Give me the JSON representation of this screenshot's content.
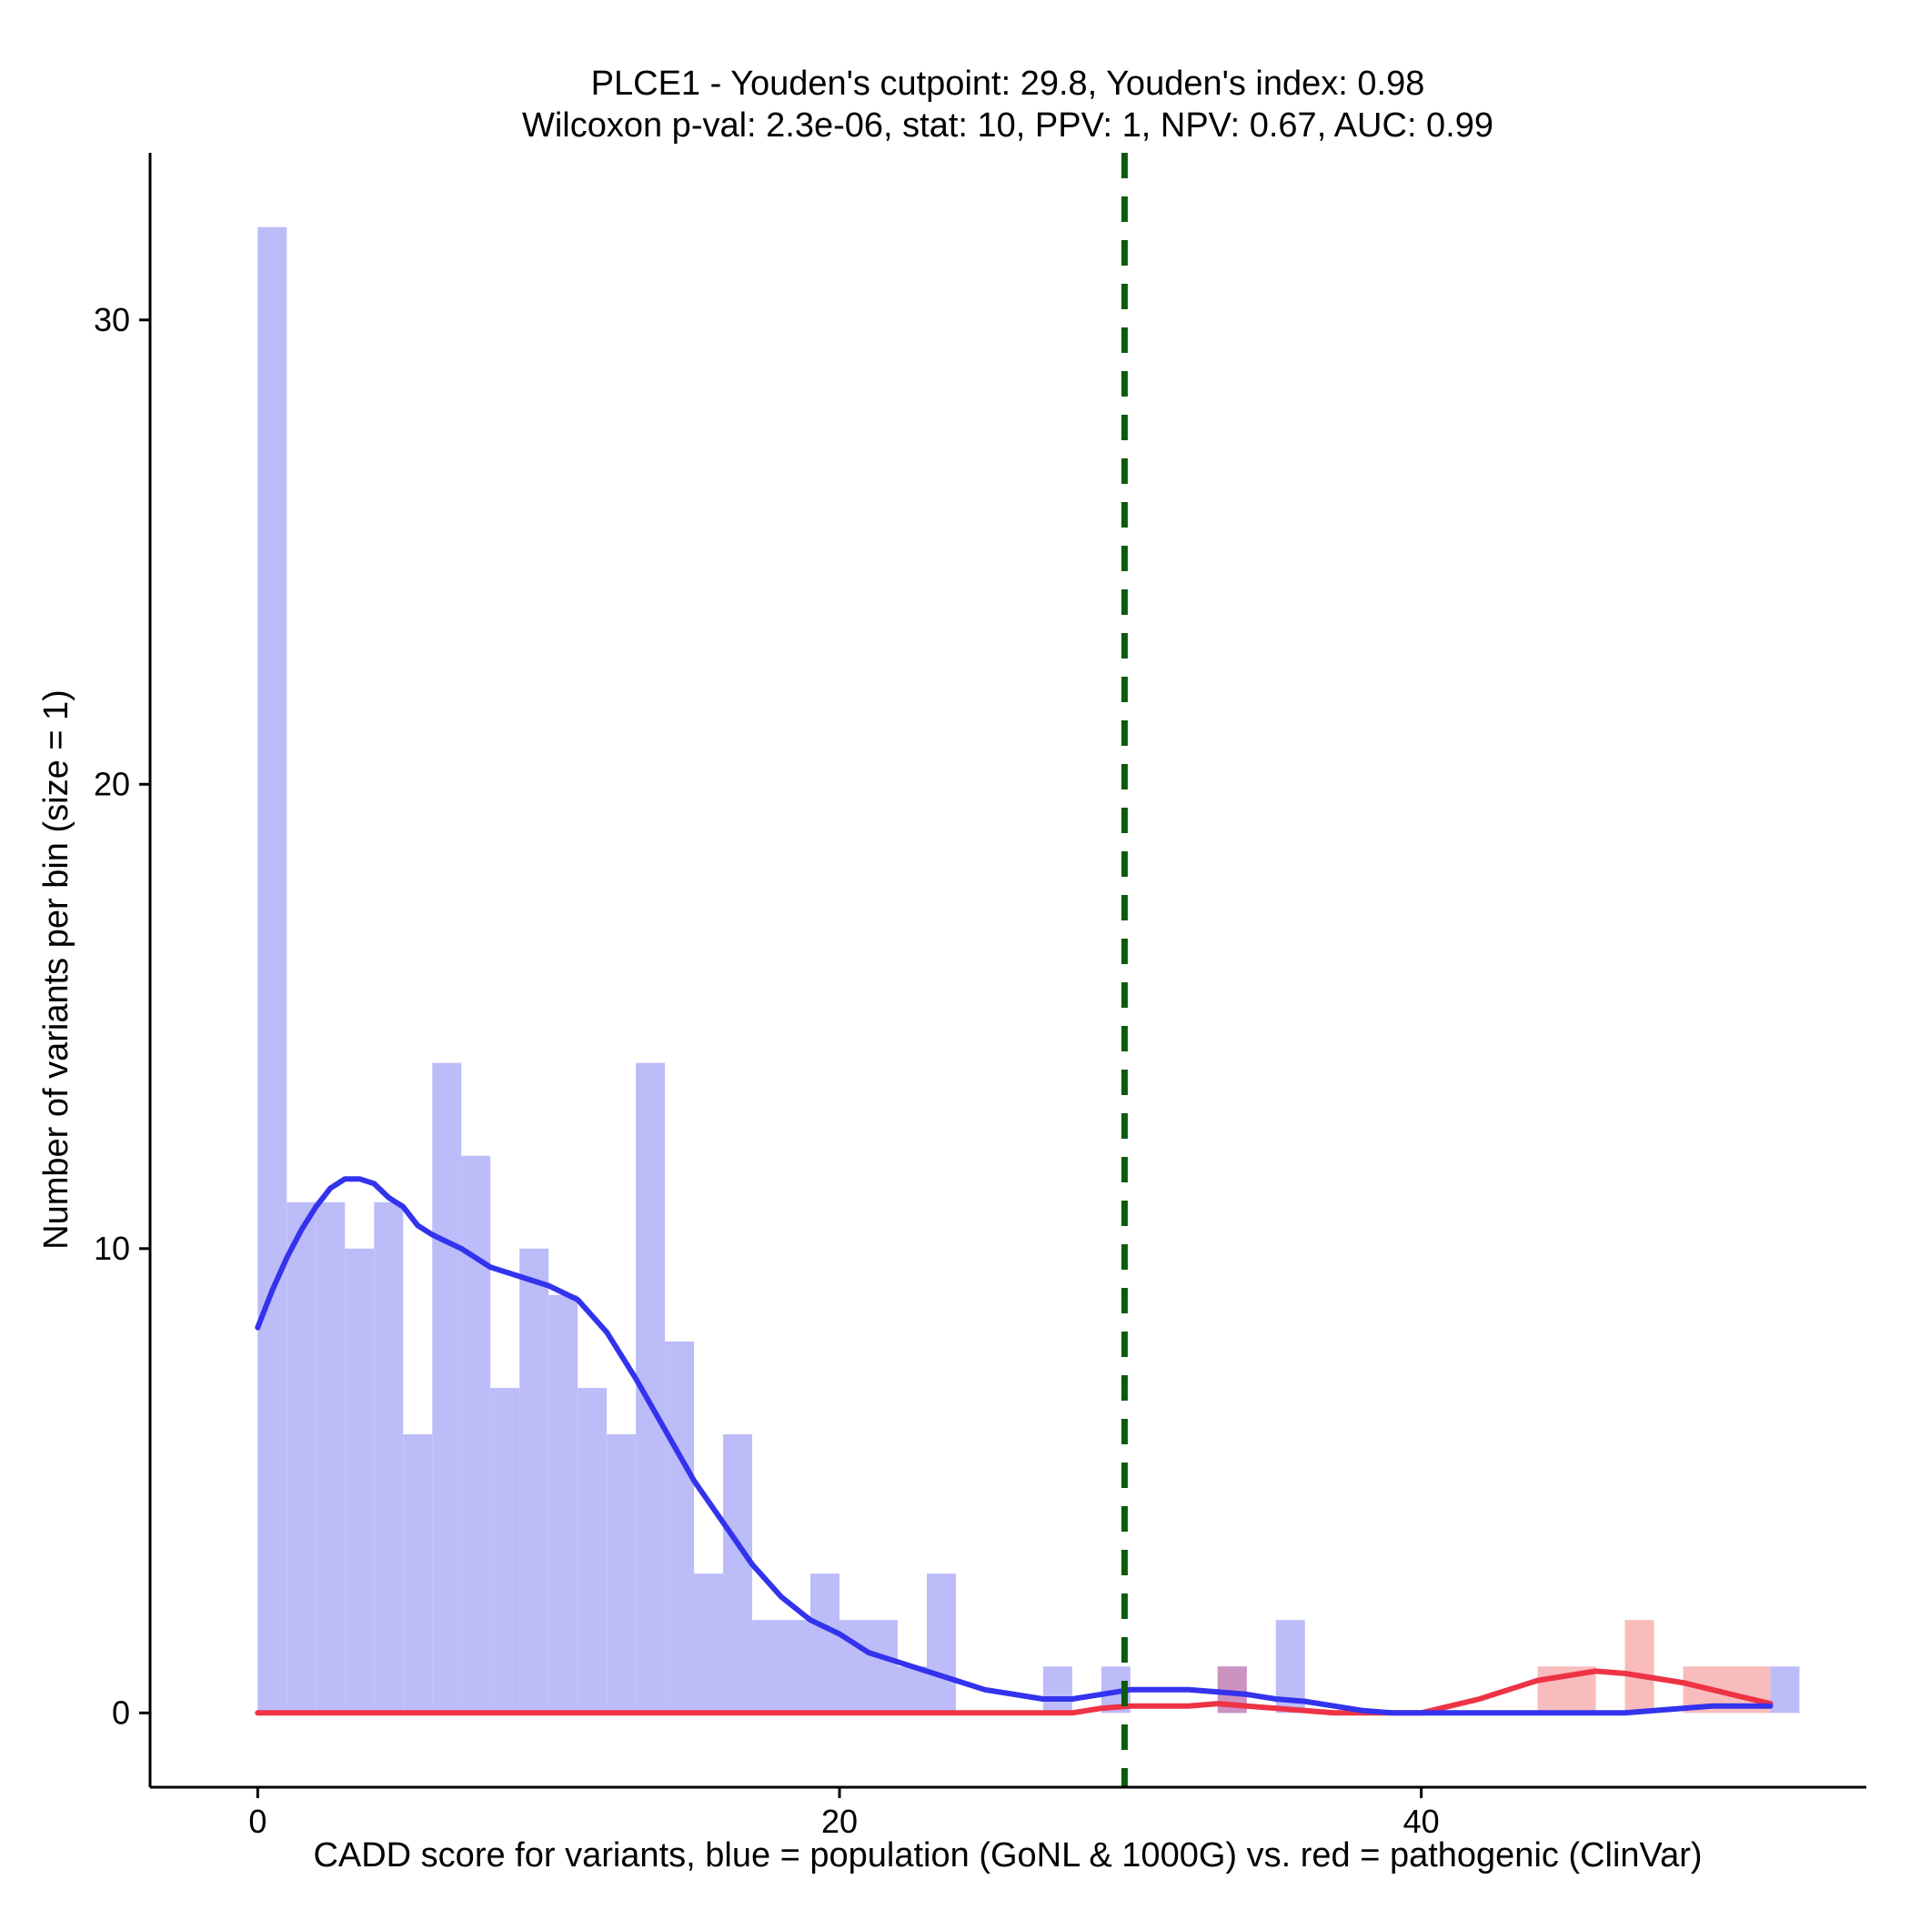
{
  "chart_data": {
    "type": "bar",
    "title_line1": "PLCE1 - Youden's cutpoint: 29.8, Youden's index: 0.98",
    "title_line2": "Wilcoxon p-val: 2.3e-06, stat: 10, PPV: 1, NPV: 0.67, AUC: 0.99",
    "xlabel": "CADD score for variants, blue = population (GoNL & 1000G) vs. red = pathogenic (ClinVar)",
    "ylabel": "Number of variants per bin (size = 1)",
    "xlim": [
      -3.7,
      55.3
    ],
    "ylim": [
      -1.6,
      33.6
    ],
    "xticks": [
      0,
      20,
      40
    ],
    "xtick_labels": [
      "0",
      "20",
      "40"
    ],
    "yticks": [
      0,
      10,
      20,
      30
    ],
    "ytick_labels": [
      "0",
      "10",
      "20",
      "30"
    ],
    "bin_width": 1,
    "cutpoint": 29.8,
    "colors": {
      "population_bar": "#bcbcf9",
      "pathogenic_bar": "#f9bcbc",
      "overlap_bar": "#cc92c0",
      "population_line": "#3333ee",
      "pathogenic_line": "#ee3344",
      "cutpoint_line": "#0a5c0a"
    },
    "series": [
      {
        "name": "population (GoNL & 1000G)",
        "bin_starts": [
          0,
          1,
          2,
          3,
          4,
          5,
          6,
          7,
          8,
          9,
          10,
          11,
          12,
          13,
          14,
          15,
          16,
          17,
          18,
          19,
          20,
          21,
          22,
          23,
          27,
          29,
          33,
          35,
          52
        ],
        "values": [
          32,
          11,
          11,
          10,
          11,
          6,
          14,
          12,
          7,
          10,
          9,
          7,
          6,
          14,
          8,
          3,
          6,
          2,
          2,
          3,
          2,
          2,
          1,
          3,
          1,
          1,
          1,
          2,
          1
        ]
      },
      {
        "name": "pathogenic (ClinVar)",
        "bin_starts": [
          33,
          44,
          45,
          47,
          49,
          50,
          51
        ],
        "values": [
          1,
          1,
          1,
          2,
          1,
          1,
          1
        ]
      }
    ],
    "density_lines": [
      {
        "name": "population",
        "x": [
          0,
          0.5,
          1,
          1.5,
          2,
          2.5,
          3,
          3.5,
          4,
          4.5,
          5,
          5.5,
          6,
          7,
          8,
          9,
          10,
          11,
          12,
          13,
          14,
          15,
          16,
          17,
          18,
          19,
          20,
          21,
          22,
          23,
          24,
          25,
          26,
          27,
          28,
          29,
          30,
          31,
          32,
          33,
          34,
          35,
          36,
          37,
          38,
          39,
          40,
          41,
          42,
          43,
          44,
          45,
          46,
          47,
          48,
          49,
          50,
          51,
          52
        ],
        "y": [
          8.3,
          9.1,
          9.8,
          10.4,
          10.9,
          11.3,
          11.5,
          11.5,
          11.4,
          11.1,
          10.9,
          10.5,
          10.3,
          10.0,
          9.6,
          9.4,
          9.2,
          8.9,
          8.2,
          7.2,
          6.1,
          5.0,
          4.1,
          3.2,
          2.5,
          2.0,
          1.7,
          1.3,
          1.1,
          0.9,
          0.7,
          0.5,
          0.4,
          0.3,
          0.3,
          0.4,
          0.5,
          0.5,
          0.5,
          0.45,
          0.4,
          0.3,
          0.25,
          0.15,
          0.05,
          0.0,
          0.0,
          0.0,
          0.0,
          0.0,
          0.0,
          0.0,
          0.0,
          0.0,
          0.05,
          0.1,
          0.15,
          0.15,
          0.15
        ]
      },
      {
        "name": "pathogenic",
        "x": [
          0,
          28,
          29,
          30,
          31,
          32,
          33,
          34,
          35,
          36,
          37,
          38,
          39,
          40,
          41,
          42,
          43,
          44,
          45,
          46,
          47,
          48,
          49,
          50,
          51,
          52
        ],
        "y": [
          0,
          0,
          0.1,
          0.15,
          0.15,
          0.15,
          0.2,
          0.15,
          0.1,
          0.05,
          0,
          0,
          0,
          0,
          0.15,
          0.3,
          0.5,
          0.7,
          0.8,
          0.9,
          0.85,
          0.75,
          0.65,
          0.5,
          0.35,
          0.2
        ]
      }
    ]
  }
}
